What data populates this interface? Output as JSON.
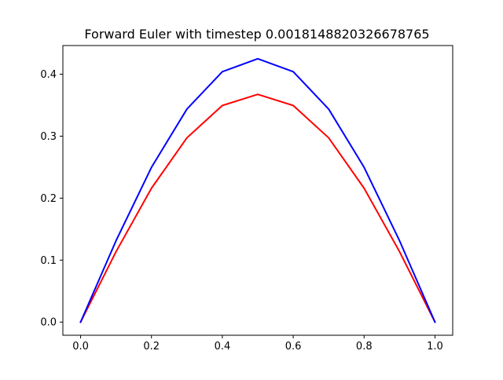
{
  "chart_data": {
    "type": "line",
    "title": "Forward Euler with timestep 0.0018148820326678765",
    "xlabel": "",
    "ylabel": "",
    "xlim": [
      -0.05,
      1.05
    ],
    "ylim": [
      -0.02125,
      0.44625
    ],
    "x_ticks": [
      0.0,
      0.2,
      0.4,
      0.6,
      0.8,
      1.0
    ],
    "x_tick_labels": [
      "0.0",
      "0.2",
      "0.4",
      "0.6",
      "0.8",
      "1.0"
    ],
    "y_ticks": [
      0.0,
      0.1,
      0.2,
      0.3,
      0.4
    ],
    "y_tick_labels": [
      "0.0",
      "0.1",
      "0.2",
      "0.3",
      "0.4"
    ],
    "grid": false,
    "x": [
      0.0,
      0.1,
      0.2,
      0.3,
      0.4,
      0.5,
      0.6,
      0.7,
      0.8,
      0.9,
      1.0
    ],
    "series": [
      {
        "name": "red",
        "color": "#ff0000",
        "values": [
          0.0,
          0.1136,
          0.216,
          0.2973,
          0.3495,
          0.3675,
          0.3495,
          0.2973,
          0.216,
          0.1136,
          0.0
        ]
      },
      {
        "name": "blue",
        "color": "#0000ff",
        "values": [
          0.0,
          0.1313,
          0.2497,
          0.3437,
          0.4041,
          0.4249,
          0.4041,
          0.3437,
          0.2497,
          0.1313,
          0.0
        ]
      }
    ]
  }
}
